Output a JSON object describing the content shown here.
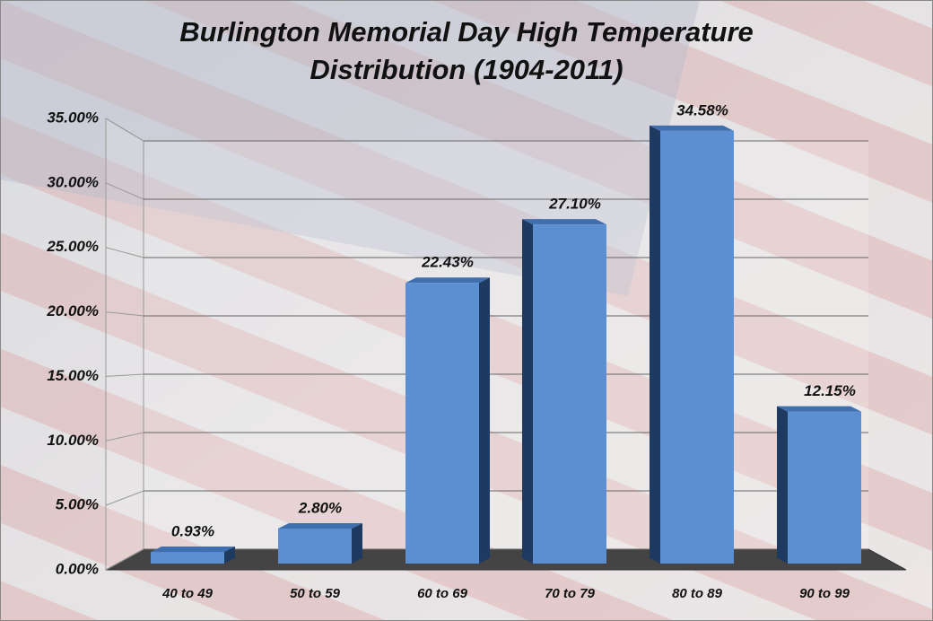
{
  "chart_data": {
    "type": "bar",
    "title": [
      "Burlington Memorial Day High Temperature",
      "Distribution (1904-2011)"
    ],
    "categories": [
      "40 to 49",
      "50 to 59",
      "60 to 69",
      "70 to 79",
      "80 to 89",
      "90 to 99"
    ],
    "values": [
      0.93,
      2.8,
      22.43,
      27.1,
      34.58,
      12.15
    ],
    "value_labels": [
      "0.93%",
      "2.80%",
      "22.43%",
      "27.10%",
      "34.58%",
      "12.15%"
    ],
    "color": "#5b8fd1",
    "ylim": [
      0,
      35
    ],
    "yticks": [
      {
        "value": 0,
        "label": "0.00%"
      },
      {
        "value": 5,
        "label": "5.00%"
      },
      {
        "value": 10,
        "label": "10.00%"
      },
      {
        "value": 15,
        "label": "15.00%"
      },
      {
        "value": 20,
        "label": "20.00%"
      },
      {
        "value": 25,
        "label": "25.00%"
      },
      {
        "value": 30,
        "label": "30.00%"
      },
      {
        "value": 35,
        "label": "35.00%"
      }
    ],
    "grid": true
  }
}
